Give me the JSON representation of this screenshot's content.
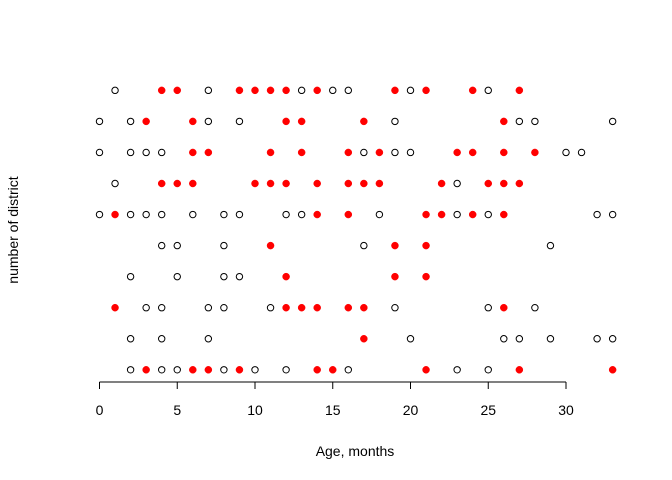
{
  "chart_data": {
    "type": "scatter",
    "title": "",
    "xlabel": "Age, months",
    "ylabel": "number of district",
    "xlim": [
      -0.5,
      33.5
    ],
    "ylim": [
      0.5,
      10.5
    ],
    "x_ticks": [
      0,
      5,
      10,
      15,
      20,
      25,
      30
    ],
    "y_ticks": [],
    "show_y_axis": false,
    "grid": false,
    "legend": "none",
    "marker": "circle",
    "colors": {
      "hollow": "#000000",
      "filled": "#ff0000"
    },
    "rows": [
      {
        "y": 1,
        "hollow": [
          2,
          4,
          5,
          8,
          10,
          12,
          16,
          23,
          25
        ],
        "filled": [
          3,
          6,
          7,
          9,
          14,
          15,
          21,
          27,
          33
        ]
      },
      {
        "y": 2,
        "hollow": [
          2,
          4,
          7,
          20,
          26,
          27,
          29,
          32,
          33
        ],
        "filled": [
          17
        ]
      },
      {
        "y": 3,
        "hollow": [
          3,
          4,
          7,
          8,
          11,
          19,
          25,
          28
        ],
        "filled": [
          1,
          12,
          13,
          14,
          16,
          17,
          26
        ]
      },
      {
        "y": 4,
        "hollow": [
          2,
          5,
          8,
          9
        ],
        "filled": [
          12,
          19,
          21
        ]
      },
      {
        "y": 5,
        "hollow": [
          4,
          5,
          8,
          17,
          29
        ],
        "filled": [
          11,
          19,
          21
        ]
      },
      {
        "y": 6,
        "hollow": [
          0,
          2,
          3,
          4,
          6,
          8,
          9,
          12,
          13,
          18,
          23,
          25,
          32,
          33
        ],
        "filled": [
          1,
          14,
          16,
          21,
          22,
          24,
          26
        ]
      },
      {
        "y": 7,
        "hollow": [
          1,
          23
        ],
        "filled": [
          4,
          5,
          6,
          10,
          11,
          12,
          14,
          16,
          17,
          18,
          22,
          25,
          26,
          27
        ]
      },
      {
        "y": 8,
        "hollow": [
          0,
          2,
          3,
          4,
          17,
          19,
          20,
          30,
          31
        ],
        "filled": [
          6,
          7,
          11,
          13,
          16,
          18,
          23,
          24,
          26,
          28
        ]
      },
      {
        "y": 9,
        "hollow": [
          0,
          2,
          7,
          9,
          19,
          27,
          28,
          33
        ],
        "filled": [
          3,
          6,
          12,
          13,
          17,
          26
        ]
      },
      {
        "y": 10,
        "hollow": [
          1,
          7,
          13,
          15,
          16,
          20,
          25
        ],
        "filled": [
          4,
          5,
          9,
          10,
          11,
          12,
          14,
          19,
          21,
          24,
          27
        ]
      }
    ]
  }
}
